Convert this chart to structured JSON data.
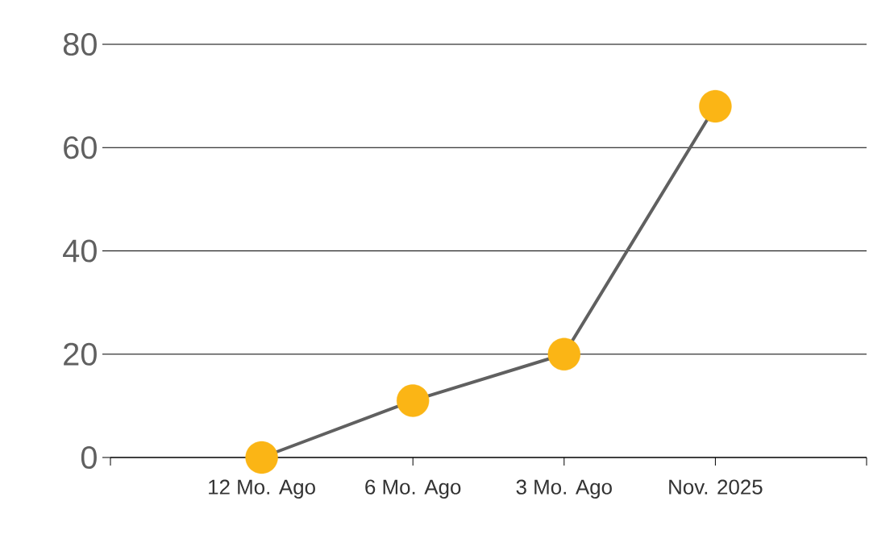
{
  "chart_data": {
    "type": "line",
    "categories": [
      "12 Mo. Ago",
      "6 Mo. Ago",
      "3 Mo. Ago",
      "Nov. 2025"
    ],
    "series": [
      {
        "color": "#606060",
        "colors": [
          "#fbb515",
          "#fbb515",
          "#fbb515",
          "#fbb515"
        ],
        "values": [
          0,
          11,
          20,
          68
        ]
      }
    ],
    "ylim": [
      0,
      80
    ],
    "yticks": [
      0,
      20,
      40,
      60,
      80
    ],
    "grid": "y",
    "marker": "circle",
    "line_style": "solid"
  }
}
